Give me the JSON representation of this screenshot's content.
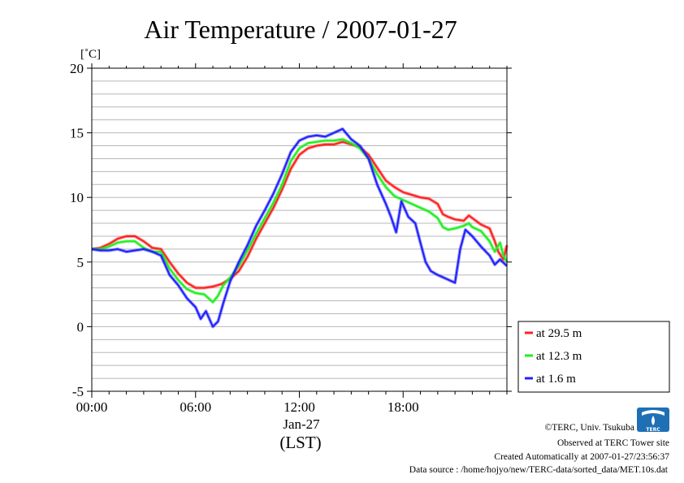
{
  "chart_data": {
    "type": "line",
    "title": "Air Temperature / 2007-01-27",
    "ylabel": "[˚C]",
    "xlabel": "(LST)",
    "x_sublabel": "Jan-27",
    "x_unit": "hours",
    "xlim": [
      0,
      24
    ],
    "ylim": [
      -5,
      20
    ],
    "x_ticks": [
      0,
      6,
      12,
      18
    ],
    "x_tick_labels": [
      "00:00",
      "06:00",
      "12:00",
      "18:00"
    ],
    "y_ticks": [
      -5,
      0,
      5,
      10,
      15,
      20
    ],
    "y_tick_labels": [
      "-5",
      "0",
      "5",
      "10",
      "15",
      "20"
    ],
    "y_minor_step": 1,
    "grid": true,
    "legend_position": "right",
    "series": [
      {
        "name": "at 29.5 m",
        "color": "#ff2020",
        "points": [
          [
            0,
            6.0
          ],
          [
            0.5,
            6.1
          ],
          [
            1.0,
            6.4
          ],
          [
            1.5,
            6.8
          ],
          [
            2.0,
            7.0
          ],
          [
            2.5,
            7.0
          ],
          [
            3.0,
            6.6
          ],
          [
            3.5,
            6.1
          ],
          [
            4.0,
            6.0
          ],
          [
            4.5,
            5.0
          ],
          [
            5.0,
            4.1
          ],
          [
            5.5,
            3.4
          ],
          [
            6.0,
            3.0
          ],
          [
            6.5,
            3.0
          ],
          [
            7.0,
            3.1
          ],
          [
            7.5,
            3.3
          ],
          [
            8.0,
            3.7
          ],
          [
            8.5,
            4.3
          ],
          [
            9.0,
            5.4
          ],
          [
            9.5,
            6.8
          ],
          [
            10.0,
            8.0
          ],
          [
            10.5,
            9.2
          ],
          [
            11.0,
            10.6
          ],
          [
            11.5,
            12.2
          ],
          [
            12.0,
            13.3
          ],
          [
            12.5,
            13.8
          ],
          [
            13.0,
            14.0
          ],
          [
            13.5,
            14.1
          ],
          [
            14.0,
            14.1
          ],
          [
            14.5,
            14.3
          ],
          [
            15.0,
            14.1
          ],
          [
            15.5,
            13.9
          ],
          [
            16.0,
            13.3
          ],
          [
            16.5,
            12.3
          ],
          [
            17.0,
            11.3
          ],
          [
            17.5,
            10.8
          ],
          [
            18.0,
            10.4
          ],
          [
            18.5,
            10.2
          ],
          [
            19.0,
            10.0
          ],
          [
            19.5,
            9.9
          ],
          [
            20.0,
            9.5
          ],
          [
            20.3,
            8.7
          ],
          [
            20.6,
            8.5
          ],
          [
            21.0,
            8.3
          ],
          [
            21.5,
            8.2
          ],
          [
            21.8,
            8.6
          ],
          [
            22.0,
            8.4
          ],
          [
            22.5,
            7.9
          ],
          [
            23.0,
            7.6
          ],
          [
            23.3,
            6.6
          ],
          [
            23.5,
            5.8
          ],
          [
            23.8,
            5.2
          ],
          [
            24.0,
            6.3
          ]
        ]
      },
      {
        "name": "at 12.3 m",
        "color": "#20ee20",
        "points": [
          [
            0,
            6.0
          ],
          [
            0.5,
            6.0
          ],
          [
            1.0,
            6.2
          ],
          [
            1.5,
            6.5
          ],
          [
            2.0,
            6.6
          ],
          [
            2.5,
            6.6
          ],
          [
            3.0,
            6.1
          ],
          [
            3.5,
            5.8
          ],
          [
            4.0,
            5.8
          ],
          [
            4.5,
            4.5
          ],
          [
            5.0,
            3.6
          ],
          [
            5.5,
            2.9
          ],
          [
            6.0,
            2.6
          ],
          [
            6.5,
            2.5
          ],
          [
            7.0,
            1.9
          ],
          [
            7.3,
            2.4
          ],
          [
            7.6,
            3.2
          ],
          [
            8.0,
            3.8
          ],
          [
            8.5,
            4.7
          ],
          [
            9.0,
            5.9
          ],
          [
            9.5,
            7.2
          ],
          [
            10.0,
            8.4
          ],
          [
            10.5,
            9.6
          ],
          [
            11.0,
            11.0
          ],
          [
            11.5,
            12.8
          ],
          [
            12.0,
            13.8
          ],
          [
            12.5,
            14.2
          ],
          [
            13.0,
            14.3
          ],
          [
            13.5,
            14.4
          ],
          [
            14.0,
            14.4
          ],
          [
            14.5,
            14.5
          ],
          [
            15.0,
            14.2
          ],
          [
            15.5,
            13.8
          ],
          [
            16.0,
            13.0
          ],
          [
            16.5,
            11.8
          ],
          [
            17.0,
            10.8
          ],
          [
            17.5,
            10.1
          ],
          [
            18.0,
            9.8
          ],
          [
            18.5,
            9.5
          ],
          [
            19.0,
            9.2
          ],
          [
            19.5,
            8.9
          ],
          [
            20.0,
            8.4
          ],
          [
            20.3,
            7.7
          ],
          [
            20.6,
            7.5
          ],
          [
            21.0,
            7.6
          ],
          [
            21.5,
            7.8
          ],
          [
            21.8,
            8.0
          ],
          [
            22.0,
            7.7
          ],
          [
            22.5,
            7.4
          ],
          [
            23.0,
            6.6
          ],
          [
            23.3,
            5.8
          ],
          [
            23.6,
            6.5
          ],
          [
            23.8,
            5.5
          ],
          [
            24.0,
            5.0
          ]
        ]
      },
      {
        "name": "at 1.6 m",
        "color": "#2020ff",
        "points": [
          [
            0,
            6.0
          ],
          [
            0.5,
            5.9
          ],
          [
            1.0,
            5.9
          ],
          [
            1.5,
            6.0
          ],
          [
            2.0,
            5.8
          ],
          [
            2.5,
            5.9
          ],
          [
            3.0,
            6.0
          ],
          [
            3.5,
            5.8
          ],
          [
            4.0,
            5.5
          ],
          [
            4.5,
            4.0
          ],
          [
            5.0,
            3.2
          ],
          [
            5.5,
            2.2
          ],
          [
            6.0,
            1.5
          ],
          [
            6.3,
            0.6
          ],
          [
            6.6,
            1.2
          ],
          [
            7.0,
            0.0
          ],
          [
            7.3,
            0.4
          ],
          [
            7.6,
            1.8
          ],
          [
            8.0,
            3.5
          ],
          [
            8.5,
            5.0
          ],
          [
            9.0,
            6.3
          ],
          [
            9.5,
            7.8
          ],
          [
            10.0,
            9.0
          ],
          [
            10.5,
            10.3
          ],
          [
            11.0,
            11.8
          ],
          [
            11.5,
            13.5
          ],
          [
            12.0,
            14.4
          ],
          [
            12.5,
            14.7
          ],
          [
            13.0,
            14.8
          ],
          [
            13.5,
            14.7
          ],
          [
            14.0,
            15.0
          ],
          [
            14.5,
            15.3
          ],
          [
            15.0,
            14.5
          ],
          [
            15.5,
            14.0
          ],
          [
            16.0,
            13.0
          ],
          [
            16.5,
            11.0
          ],
          [
            17.0,
            9.5
          ],
          [
            17.3,
            8.5
          ],
          [
            17.6,
            7.3
          ],
          [
            17.9,
            9.7
          ],
          [
            18.3,
            8.5
          ],
          [
            18.7,
            8.0
          ],
          [
            19.0,
            6.5
          ],
          [
            19.3,
            5.0
          ],
          [
            19.6,
            4.3
          ],
          [
            20.0,
            4.0
          ],
          [
            20.5,
            3.7
          ],
          [
            21.0,
            3.4
          ],
          [
            21.3,
            6.0
          ],
          [
            21.6,
            7.5
          ],
          [
            22.0,
            7.0
          ],
          [
            22.5,
            6.2
          ],
          [
            23.0,
            5.5
          ],
          [
            23.3,
            4.8
          ],
          [
            23.6,
            5.2
          ],
          [
            24.0,
            4.7
          ]
        ]
      }
    ]
  },
  "footer": {
    "line1": "©TERC, Univ. Tsukuba",
    "line2": "Observed at TERC Tower site",
    "line3": "Created Automatically at 2007-01-27/23:56:37",
    "line4": "Data source : /home/hojyo/new/TERC-data/sorted_data/MET.10s.dat"
  },
  "logo": {
    "text": "TERC",
    "color": "#1f6fb5"
  }
}
